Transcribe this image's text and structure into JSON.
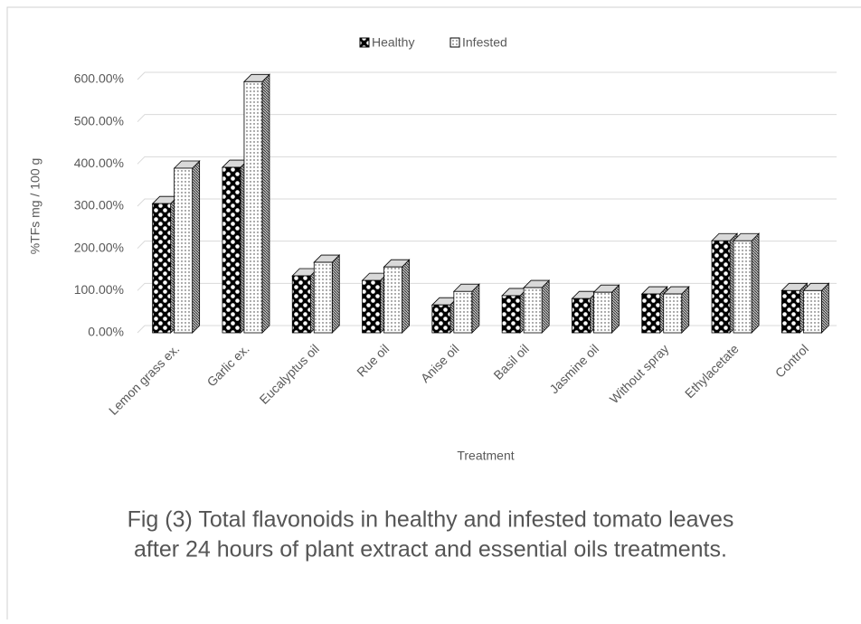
{
  "chart_data": {
    "type": "bar",
    "categories": [
      "Lemon grass ex.",
      "Garlic ex.",
      "Eucalyptus oil",
      "Rue oil",
      "Anise oil",
      "Basil oil",
      "Jasmine oil",
      "Without spray",
      "Ethylacetate",
      "Control"
    ],
    "series": [
      {
        "name": "Healthy",
        "pattern": "checker",
        "values": [
          306,
          392,
          135,
          124,
          66,
          88,
          81,
          92,
          218,
          100
        ]
      },
      {
        "name": "Infested",
        "pattern": "dots",
        "values": [
          390,
          595,
          167,
          156,
          98,
          107,
          96,
          92,
          218,
          100
        ]
      }
    ],
    "ylim": [
      0,
      600
    ],
    "yticks": [
      {
        "value": 0,
        "label": "0.00%"
      },
      {
        "value": 100,
        "label": "100.00%"
      },
      {
        "value": 200,
        "label": "200.00%"
      },
      {
        "value": 300,
        "label": "300.00%"
      },
      {
        "value": 400,
        "label": "400.00%"
      },
      {
        "value": 500,
        "label": "500.00%"
      },
      {
        "value": 600,
        "label": "600.00%"
      }
    ],
    "grid": true,
    "legend": "top",
    "x_label": "Treatment",
    "y_label": "%TFs mg / 100 g",
    "caption": [
      "Fig (3) Total flavonoids in healthy and infested tomato leaves",
      "after 24 hours of plant extract and essential oils treatments."
    ]
  }
}
